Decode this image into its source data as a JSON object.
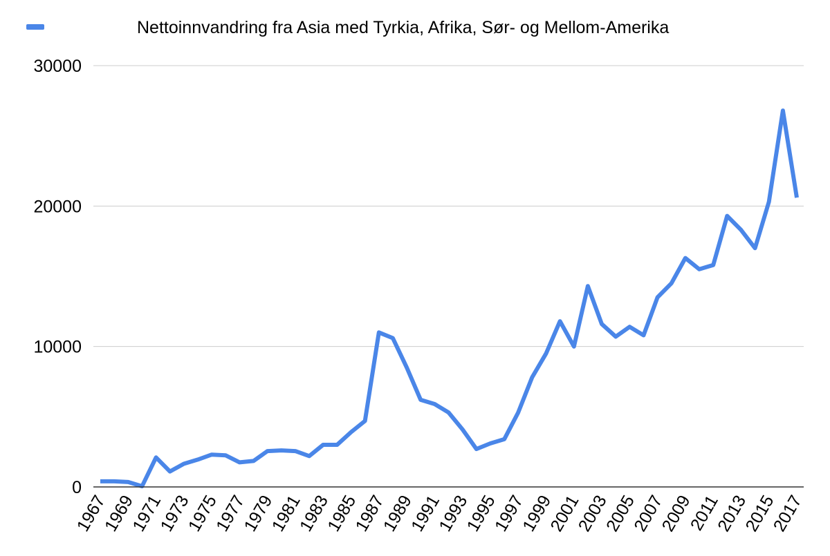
{
  "chart_data": {
    "type": "line",
    "title": "",
    "xlabel": "",
    "ylabel": "",
    "legend_position": "top",
    "grid": true,
    "ylim": [
      0,
      30000
    ],
    "yticks": [
      0,
      10000,
      20000,
      30000
    ],
    "x_tick_labels": [
      "1967",
      "1969",
      "1971",
      "1973",
      "1975",
      "1977",
      "1979",
      "1981",
      "1983",
      "1985",
      "1987",
      "1989",
      "1991",
      "1993",
      "1995",
      "1997",
      "1999",
      "2001",
      "2003",
      "2005",
      "2007",
      "2009",
      "2011",
      "2013",
      "2015",
      "2017"
    ],
    "x": [
      1967,
      1968,
      1969,
      1970,
      1971,
      1972,
      1973,
      1974,
      1975,
      1976,
      1977,
      1978,
      1979,
      1980,
      1981,
      1982,
      1983,
      1984,
      1985,
      1986,
      1987,
      1988,
      1989,
      1990,
      1991,
      1992,
      1993,
      1994,
      1995,
      1996,
      1997,
      1998,
      1999,
      2000,
      2001,
      2002,
      2003,
      2004,
      2005,
      2006,
      2007,
      2008,
      2009,
      2010,
      2011,
      2012,
      2013,
      2014,
      2015,
      2016,
      2017
    ],
    "series": [
      {
        "name": "Nettoinnvandring fra Asia med Tyrkia, Afrika, Sør- og Mellom-Amerika",
        "color": "#4a86e8",
        "values": [
          400,
          400,
          350,
          50,
          2100,
          1100,
          1650,
          1950,
          2300,
          2250,
          1750,
          1850,
          2550,
          2600,
          2550,
          2200,
          3000,
          3000,
          3900,
          4700,
          11000,
          10600,
          8500,
          6200,
          5900,
          5300,
          4100,
          2700,
          3100,
          3400,
          5300,
          7800,
          9500,
          11800,
          10000,
          14300,
          11600,
          10700,
          11400,
          10800,
          13500,
          14500,
          16300,
          15500,
          15800,
          19300,
          18300,
          17000,
          20300,
          26800,
          20600
        ]
      }
    ]
  }
}
